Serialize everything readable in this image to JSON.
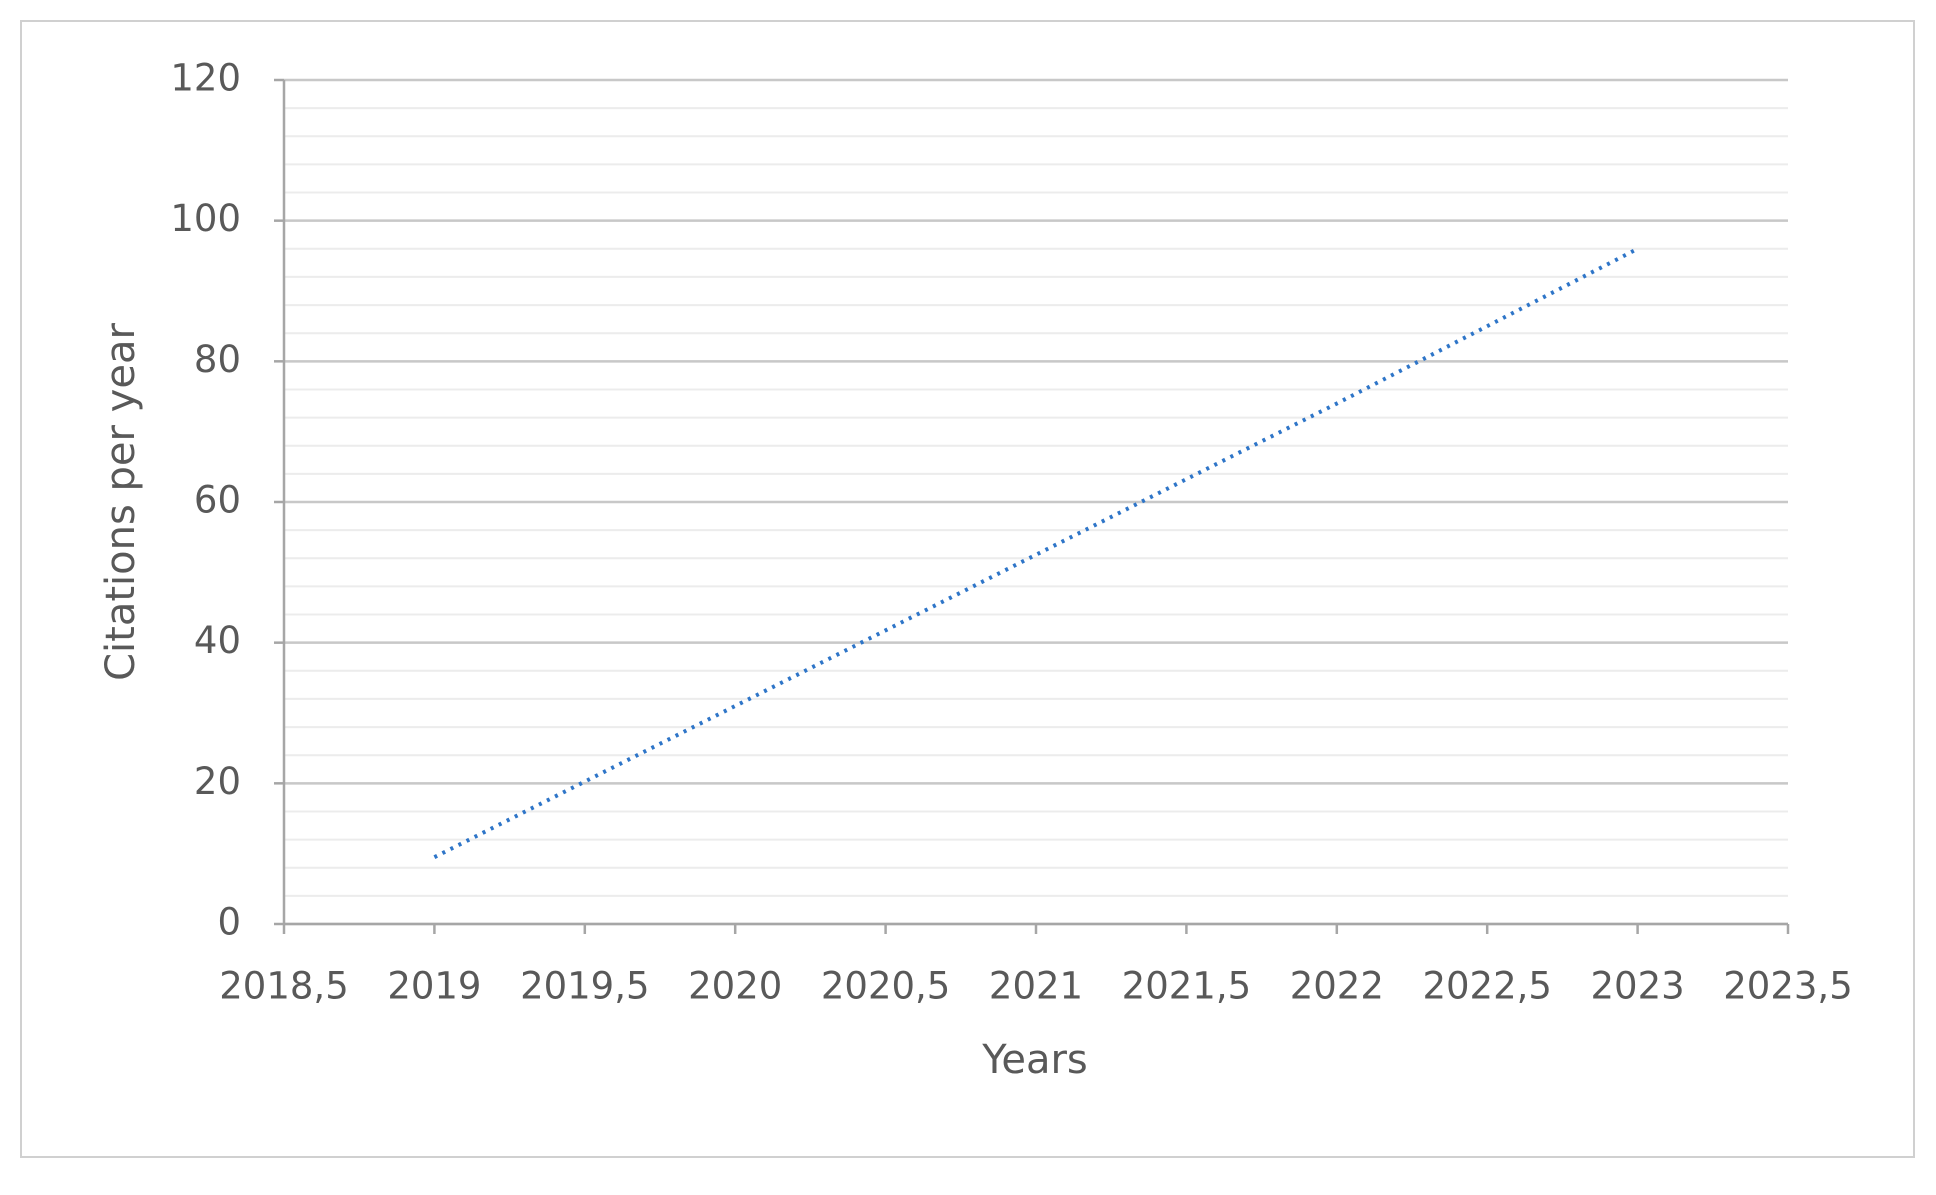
{
  "chart_data": {
    "type": "line",
    "x_label": "Years",
    "y_label": "Citations per year",
    "x": [
      2019,
      2020,
      2021,
      2022,
      2023
    ],
    "series": [
      {
        "name": "Citations per year",
        "color": "#2e75c8",
        "values": [
          9.5,
          31,
          52.5,
          74,
          96
        ]
      }
    ],
    "xlim": [
      2018.5,
      2023.5
    ],
    "xticks": [
      {
        "value": 2018.5,
        "label": "2018,5"
      },
      2019,
      {
        "value": 2019.5,
        "label": "2019,5"
      },
      2020,
      {
        "value": 2020.5,
        "label": "2020,5"
      },
      2021,
      {
        "value": 2021.5,
        "label": "2021,5"
      },
      2022,
      {
        "value": 2022.5,
        "label": "2022,5"
      },
      2023,
      {
        "value": 2023.5,
        "label": "2023,5"
      }
    ],
    "ylim": [
      0,
      120
    ],
    "yticks": [
      0,
      20,
      40,
      60,
      80,
      100,
      120
    ],
    "grid": true,
    "minor_grid": true,
    "line_style": "dotted"
  }
}
